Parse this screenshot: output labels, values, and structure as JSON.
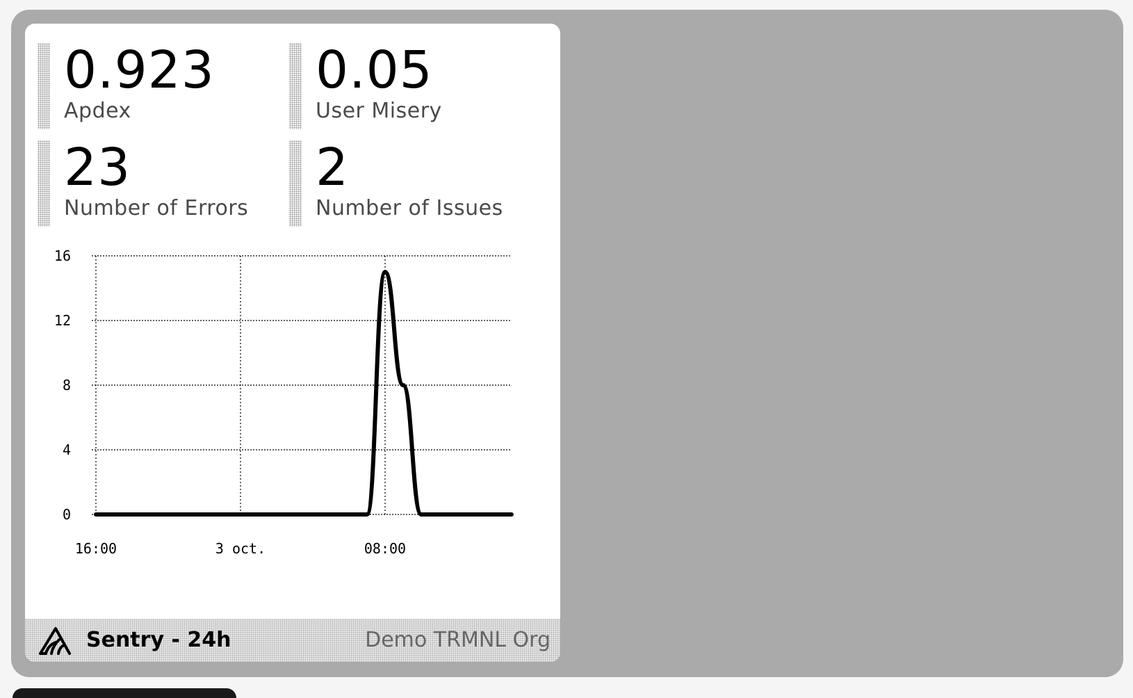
{
  "metrics": [
    {
      "value": "0.923",
      "label": "Apdex"
    },
    {
      "value": "0.05",
      "label": "User Misery"
    },
    {
      "value": "23",
      "label": "Number of Errors"
    },
    {
      "value": "2",
      "label": "Number of Issues"
    }
  ],
  "chart_data": {
    "type": "line",
    "title": "",
    "xlabel": "",
    "ylabel": "",
    "ylim": [
      0,
      16
    ],
    "y_ticks": [
      "0",
      "4",
      "8",
      "12",
      "16"
    ],
    "x_tick_labels": [
      "16:00",
      "3 oct.",
      "08:00"
    ],
    "x_hours": [
      0,
      1,
      2,
      3,
      4,
      5,
      6,
      7,
      8,
      9,
      10,
      11,
      12,
      13,
      14,
      15,
      16,
      17,
      18,
      19,
      20,
      21,
      22,
      23
    ],
    "series": [
      {
        "values": [
          0,
          0,
          0,
          0,
          0,
          0,
          0,
          0,
          0,
          0,
          0,
          0,
          0,
          0,
          0,
          0,
          15,
          8,
          0,
          0,
          0,
          0,
          0,
          0
        ]
      }
    ],
    "grid": true,
    "colors": {
      "line": "#000000",
      "grid": "#000000"
    }
  },
  "footer": {
    "title": "Sentry - 24h",
    "org": "Demo TRMNL Org",
    "logo_icon": "sentry-logo-icon"
  },
  "colors": {
    "device_bezel": "#aaaaaa",
    "card": "#ffffff",
    "label": "#4a4a4a",
    "footer_org": "#666666"
  }
}
